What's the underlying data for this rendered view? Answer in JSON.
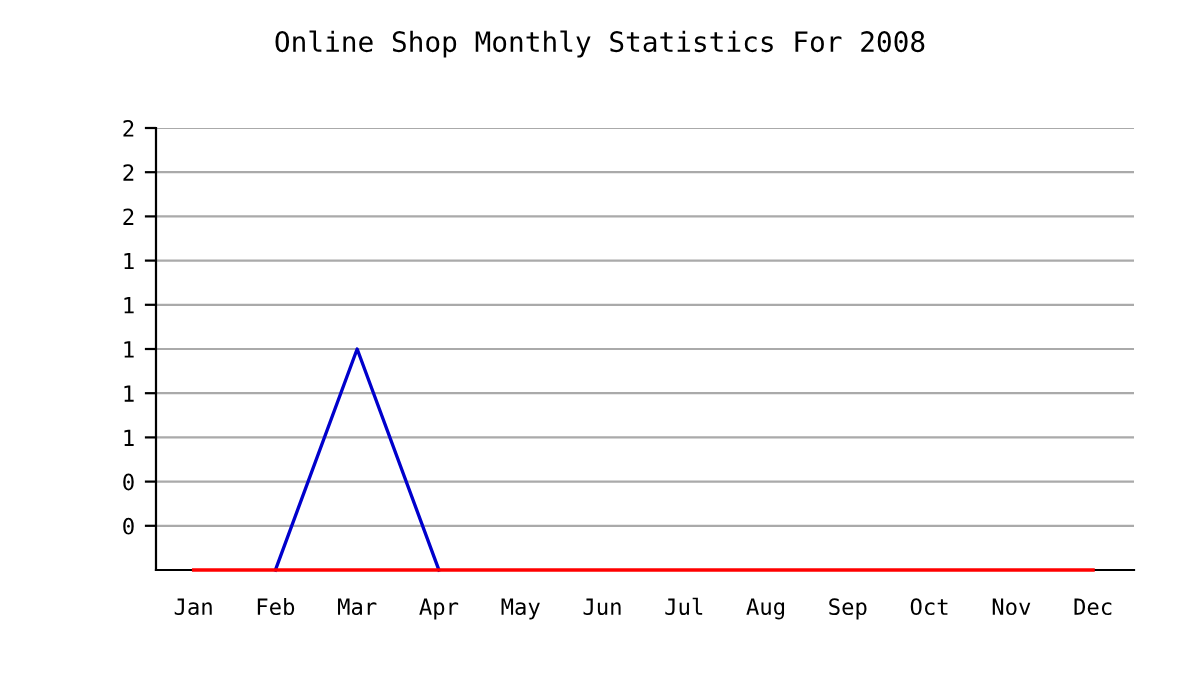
{
  "chart_data": {
    "type": "line",
    "title": "Online Shop Monthly Statistics For 2008",
    "categories": [
      "Jan",
      "Feb",
      "Mar",
      "Apr",
      "May",
      "Jun",
      "Jul",
      "Aug",
      "Sep",
      "Oct",
      "Nov",
      "Dec"
    ],
    "series": [
      {
        "color": "#0000cc",
        "values": [
          null,
          0,
          1,
          0,
          null,
          null,
          null,
          null,
          null,
          null,
          null,
          null
        ]
      },
      {
        "color": "#ff0000",
        "values": [
          0,
          0,
          0,
          0,
          0,
          0,
          0,
          0,
          0,
          0,
          0,
          0
        ]
      }
    ],
    "ylim": [
      0,
      2
    ],
    "yticks": [
      {
        "value": 0.2,
        "label": "0"
      },
      {
        "value": 0.4,
        "label": "0"
      },
      {
        "value": 0.6,
        "label": "1"
      },
      {
        "value": 0.8,
        "label": "1"
      },
      {
        "value": 1.0,
        "label": "1"
      },
      {
        "value": 1.2,
        "label": "1"
      },
      {
        "value": 1.4,
        "label": "1"
      },
      {
        "value": 1.6,
        "label": "2"
      },
      {
        "value": 1.8,
        "label": "2"
      },
      {
        "value": 2.0,
        "label": "2"
      }
    ],
    "grid": "y",
    "marker": "none",
    "line_style": "solid"
  }
}
